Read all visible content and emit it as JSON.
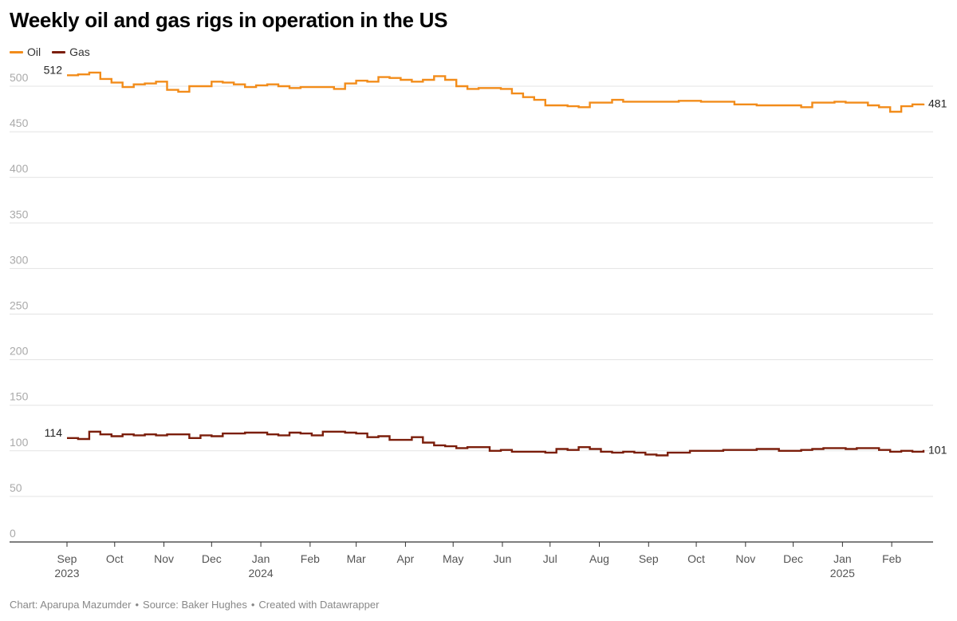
{
  "chart_data": {
    "type": "line",
    "title": "Weekly oil and gas rigs in operation in the US",
    "ylim": [
      0,
      520
    ],
    "y_ticks": [
      0,
      50,
      100,
      150,
      200,
      250,
      300,
      350,
      400,
      450,
      500
    ],
    "x_ticks": [
      {
        "date": "2023-09-01",
        "label": "Sep",
        "year": "2023"
      },
      {
        "date": "2023-10-01",
        "label": "Oct",
        "year": ""
      },
      {
        "date": "2023-11-01",
        "label": "Nov",
        "year": ""
      },
      {
        "date": "2023-12-01",
        "label": "Dec",
        "year": ""
      },
      {
        "date": "2024-01-01",
        "label": "Jan",
        "year": "2024"
      },
      {
        "date": "2024-02-01",
        "label": "Feb",
        "year": ""
      },
      {
        "date": "2024-03-01",
        "label": "Mar",
        "year": ""
      },
      {
        "date": "2024-04-01",
        "label": "Apr",
        "year": ""
      },
      {
        "date": "2024-05-01",
        "label": "May",
        "year": ""
      },
      {
        "date": "2024-06-01",
        "label": "Jun",
        "year": ""
      },
      {
        "date": "2024-07-01",
        "label": "Jul",
        "year": ""
      },
      {
        "date": "2024-08-01",
        "label": "Aug",
        "year": ""
      },
      {
        "date": "2024-09-01",
        "label": "Sep",
        "year": ""
      },
      {
        "date": "2024-10-01",
        "label": "Oct",
        "year": ""
      },
      {
        "date": "2024-11-01",
        "label": "Nov",
        "year": ""
      },
      {
        "date": "2024-12-01",
        "label": "Dec",
        "year": ""
      },
      {
        "date": "2025-01-01",
        "label": "Jan",
        "year": "2025"
      },
      {
        "date": "2025-02-01",
        "label": "Feb",
        "year": ""
      }
    ],
    "x_range": [
      "2023-09-01",
      "2025-02-21"
    ],
    "series": [
      {
        "name": "Oil",
        "color": "#f28c1a",
        "start_label": "512",
        "end_label": "481",
        "dates": [
          "2023-09-01",
          "2023-09-08",
          "2023-09-15",
          "2023-09-22",
          "2023-09-29",
          "2023-10-06",
          "2023-10-13",
          "2023-10-20",
          "2023-10-27",
          "2023-11-03",
          "2023-11-10",
          "2023-11-17",
          "2023-11-24",
          "2023-12-01",
          "2023-12-08",
          "2023-12-15",
          "2023-12-22",
          "2023-12-29",
          "2024-01-05",
          "2024-01-12",
          "2024-01-19",
          "2024-01-26",
          "2024-02-02",
          "2024-02-09",
          "2024-02-16",
          "2024-02-23",
          "2024-03-01",
          "2024-03-08",
          "2024-03-15",
          "2024-03-22",
          "2024-03-29",
          "2024-04-05",
          "2024-04-12",
          "2024-04-19",
          "2024-04-26",
          "2024-05-03",
          "2024-05-10",
          "2024-05-17",
          "2024-05-24",
          "2024-05-31",
          "2024-06-07",
          "2024-06-14",
          "2024-06-21",
          "2024-06-28",
          "2024-07-05",
          "2024-07-12",
          "2024-07-19",
          "2024-07-26",
          "2024-08-02",
          "2024-08-09",
          "2024-08-16",
          "2024-08-23",
          "2024-08-30",
          "2024-09-06",
          "2024-09-13",
          "2024-09-20",
          "2024-09-27",
          "2024-10-04",
          "2024-10-11",
          "2024-10-18",
          "2024-10-25",
          "2024-11-01",
          "2024-11-08",
          "2024-11-15",
          "2024-11-22",
          "2024-11-29",
          "2024-12-06",
          "2024-12-13",
          "2024-12-20",
          "2024-12-27",
          "2025-01-03",
          "2025-01-10",
          "2025-01-17",
          "2025-01-24",
          "2025-01-31",
          "2025-02-07",
          "2025-02-14",
          "2025-02-21"
        ],
        "values": [
          512,
          513,
          515,
          508,
          504,
          499,
          502,
          503,
          505,
          496,
          494,
          500,
          500,
          505,
          504,
          502,
          499,
          501,
          502,
          500,
          498,
          499,
          499,
          499,
          497,
          503,
          506,
          505,
          510,
          509,
          507,
          505,
          507,
          511,
          507,
          500,
          497,
          498,
          498,
          497,
          492,
          488,
          485,
          479,
          479,
          478,
          477,
          482,
          482,
          485,
          483,
          483,
          483,
          483,
          483,
          484,
          484,
          483,
          483,
          483,
          480,
          480,
          479,
          479,
          479,
          479,
          477,
          482,
          482,
          483,
          482,
          482,
          479,
          477,
          472,
          478,
          480,
          481
        ]
      },
      {
        "name": "Gas",
        "color": "#7b1e0b",
        "start_label": "114",
        "end_label": "101",
        "dates": [
          "2023-09-01",
          "2023-09-08",
          "2023-09-15",
          "2023-09-22",
          "2023-09-29",
          "2023-10-06",
          "2023-10-13",
          "2023-10-20",
          "2023-10-27",
          "2023-11-03",
          "2023-11-10",
          "2023-11-17",
          "2023-11-24",
          "2023-12-01",
          "2023-12-08",
          "2023-12-15",
          "2023-12-22",
          "2023-12-29",
          "2024-01-05",
          "2024-01-12",
          "2024-01-19",
          "2024-01-26",
          "2024-02-02",
          "2024-02-09",
          "2024-02-16",
          "2024-02-23",
          "2024-03-01",
          "2024-03-08",
          "2024-03-15",
          "2024-03-22",
          "2024-03-29",
          "2024-04-05",
          "2024-04-12",
          "2024-04-19",
          "2024-04-26",
          "2024-05-03",
          "2024-05-10",
          "2024-05-17",
          "2024-05-24",
          "2024-05-31",
          "2024-06-07",
          "2024-06-14",
          "2024-06-21",
          "2024-06-28",
          "2024-07-05",
          "2024-07-12",
          "2024-07-19",
          "2024-07-26",
          "2024-08-02",
          "2024-08-09",
          "2024-08-16",
          "2024-08-23",
          "2024-08-30",
          "2024-09-06",
          "2024-09-13",
          "2024-09-20",
          "2024-09-27",
          "2024-10-04",
          "2024-10-11",
          "2024-10-18",
          "2024-10-25",
          "2024-11-01",
          "2024-11-08",
          "2024-11-15",
          "2024-11-22",
          "2024-11-29",
          "2024-12-06",
          "2024-12-13",
          "2024-12-20",
          "2024-12-27",
          "2025-01-03",
          "2025-01-10",
          "2025-01-17",
          "2025-01-24",
          "2025-01-31",
          "2025-02-07",
          "2025-02-14",
          "2025-02-21"
        ],
        "values": [
          114,
          113,
          121,
          118,
          116,
          118,
          117,
          118,
          117,
          118,
          118,
          114,
          117,
          116,
          119,
          119,
          120,
          120,
          118,
          117,
          120,
          119,
          117,
          121,
          121,
          120,
          119,
          115,
          116,
          112,
          112,
          115,
          109,
          106,
          105,
          103,
          104,
          104,
          100,
          101,
          99,
          99,
          99,
          98,
          102,
          101,
          104,
          102,
          99,
          98,
          99,
          98,
          96,
          95,
          98,
          98,
          100,
          100,
          100,
          101,
          101,
          101,
          102,
          102,
          100,
          100,
          101,
          102,
          103,
          103,
          102,
          103,
          103,
          101,
          99,
          100,
          99,
          101
        ]
      }
    ]
  },
  "footer": {
    "chart_credit": "Chart: Aparupa Mazumder",
    "source": "Source: Baker Hughes",
    "created": "Created with Datawrapper",
    "separator": "•"
  }
}
